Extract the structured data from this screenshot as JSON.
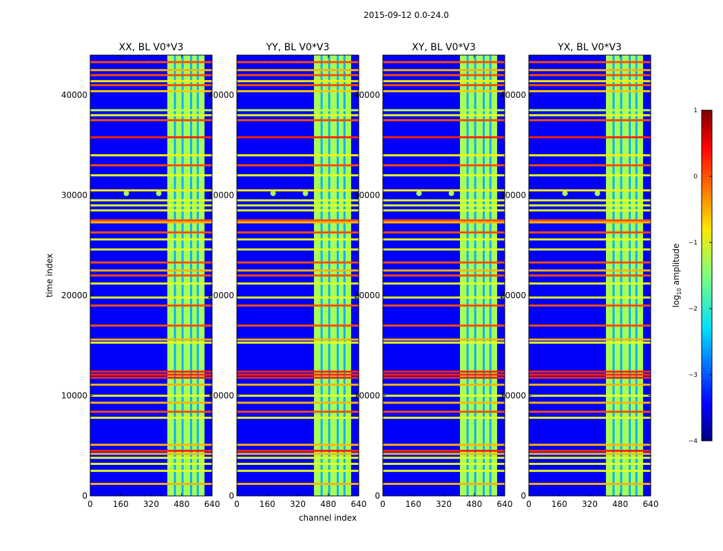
{
  "figure": {
    "suptitle": "2015-09-12 0.0-24.0",
    "shared_xlabel": "channel index",
    "shared_ylabel": "time index"
  },
  "chart_data": {
    "type": "heatmap",
    "x_range": [
      0,
      640
    ],
    "y_range": [
      0,
      44000
    ],
    "x_ticks": [
      0,
      160,
      320,
      480,
      640
    ],
    "y_ticks": [
      0,
      10000,
      20000,
      30000,
      40000
    ],
    "panels": [
      {
        "title": "XX, BL V0*V3"
      },
      {
        "title": "YY, BL V0*V3"
      },
      {
        "title": "XY, BL V0*V3"
      },
      {
        "title": "YX, BL V0*V3"
      }
    ],
    "band_channels": [
      {
        "start": 405,
        "end": 600,
        "level": -1.3
      }
    ],
    "band_subchannel_gaps": [
      445,
      485,
      530,
      565
    ],
    "background_level": -3.4,
    "rfi_time_lines": [
      {
        "t": 43300,
        "level": 0
      },
      {
        "t": 42500,
        "level": -0.5
      },
      {
        "t": 42000,
        "level": 0
      },
      {
        "t": 41400,
        "level": -0.8
      },
      {
        "t": 41000,
        "level": 0
      },
      {
        "t": 40400,
        "level": -0.6
      },
      {
        "t": 38500,
        "level": -1.2
      },
      {
        "t": 38000,
        "level": -1.0
      },
      {
        "t": 37500,
        "level": 0
      },
      {
        "t": 35800,
        "level": 0.2
      },
      {
        "t": 34000,
        "level": -0.8
      },
      {
        "t": 33000,
        "level": 0
      },
      {
        "t": 32000,
        "level": -1.0
      },
      {
        "t": 30500,
        "level": -0.8
      },
      {
        "t": 29500,
        "level": -1.0
      },
      {
        "t": 29000,
        "level": -1.0
      },
      {
        "t": 28500,
        "level": -1.0
      },
      {
        "t": 27500,
        "level": 0
      },
      {
        "t": 27300,
        "level": -0.5
      },
      {
        "t": 26300,
        "level": 0
      },
      {
        "t": 25600,
        "level": -1.0
      },
      {
        "t": 24600,
        "level": -1.0
      },
      {
        "t": 23300,
        "level": 0
      },
      {
        "t": 22500,
        "level": -0.5
      },
      {
        "t": 22000,
        "level": 0
      },
      {
        "t": 21200,
        "level": -1.0
      },
      {
        "t": 19800,
        "level": -1.0
      },
      {
        "t": 19000,
        "level": 0
      },
      {
        "t": 17000,
        "level": 0
      },
      {
        "t": 15600,
        "level": -0.5
      },
      {
        "t": 15300,
        "level": -1.0
      },
      {
        "t": 12400,
        "level": 0.2
      },
      {
        "t": 12100,
        "level": 0.2
      },
      {
        "t": 11800,
        "level": 0.2
      },
      {
        "t": 11100,
        "level": -0.5
      },
      {
        "t": 10000,
        "level": -1.0
      },
      {
        "t": 9300,
        "level": -0.5
      },
      {
        "t": 8400,
        "level": 0
      },
      {
        "t": 7800,
        "level": -1.0
      },
      {
        "t": 5100,
        "level": -0.5
      },
      {
        "t": 4500,
        "level": 0.2
      },
      {
        "t": 4200,
        "level": -0.5
      },
      {
        "t": 3800,
        "level": -1.0
      },
      {
        "t": 3200,
        "level": -1.0
      },
      {
        "t": 2500,
        "level": -1.0
      },
      {
        "t": 1200,
        "level": -0.5
      }
    ],
    "point_sources": [
      {
        "channel": 190,
        "t": 30200
      },
      {
        "channel": 360,
        "t": 30200
      }
    ],
    "colorbar": {
      "label_prefix": "log",
      "label_sub": "10",
      "label_suffix": " amplitude",
      "range": [
        -4,
        1
      ],
      "ticks": [
        {
          "value": 1,
          "label": "1"
        },
        {
          "value": 0,
          "label": "0"
        },
        {
          "value": -1,
          "label": "−1"
        },
        {
          "value": -2,
          "label": "−2"
        },
        {
          "value": -3,
          "label": "−3"
        },
        {
          "value": -4,
          "label": "−4"
        }
      ]
    }
  }
}
